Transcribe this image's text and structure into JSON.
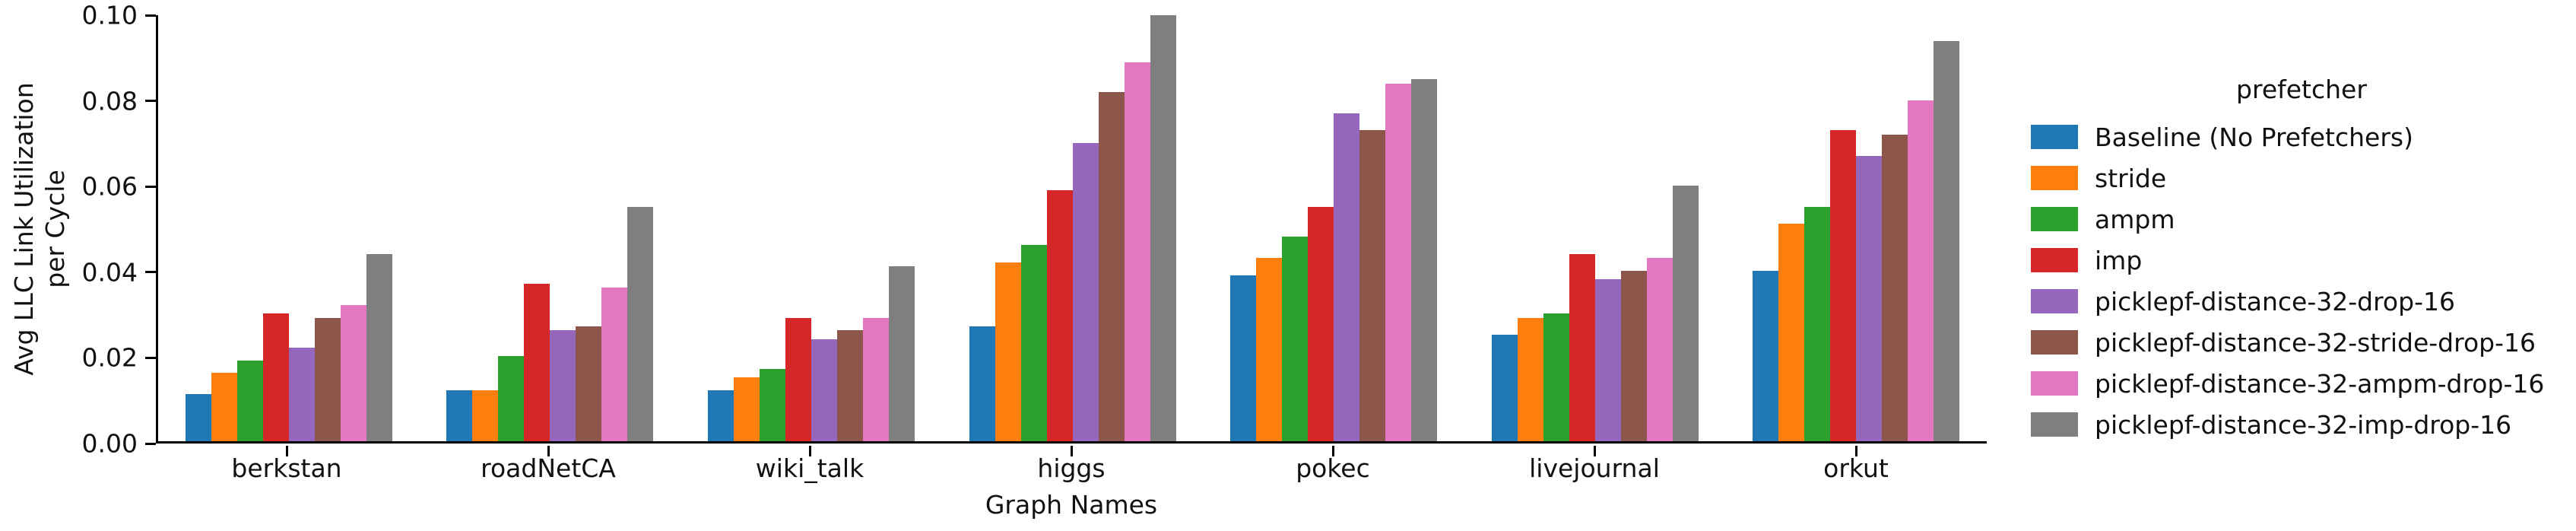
{
  "chart_data": {
    "type": "bar",
    "title": "",
    "xlabel": "Graph Names",
    "ylabel": "Avg LLC Link Utilization\nper Cycle",
    "legend_title": "prefetcher",
    "ylim": [
      0,
      0.1
    ],
    "yticks": [
      "0.00",
      "0.02",
      "0.04",
      "0.06",
      "0.08",
      "0.10"
    ],
    "grid": false,
    "legend_position": "right",
    "categories": [
      "berkstan",
      "roadNetCA",
      "wiki_talk",
      "higgs",
      "pokec",
      "livejournal",
      "orkut"
    ],
    "series": [
      {
        "name": "Baseline (No Prefetchers)",
        "color": "#1f77b4",
        "values": [
          0.011,
          0.012,
          0.012,
          0.027,
          0.039,
          0.025,
          0.04
        ]
      },
      {
        "name": "stride",
        "color": "#ff7f0e",
        "values": [
          0.016,
          0.012,
          0.015,
          0.042,
          0.043,
          0.029,
          0.051
        ]
      },
      {
        "name": "ampm",
        "color": "#2ca02c",
        "values": [
          0.019,
          0.02,
          0.017,
          0.046,
          0.048,
          0.03,
          0.055
        ]
      },
      {
        "name": "imp",
        "color": "#d62728",
        "values": [
          0.03,
          0.037,
          0.029,
          0.059,
          0.055,
          0.044,
          0.073
        ]
      },
      {
        "name": "picklepf-distance-32-drop-16",
        "color": "#9467bd",
        "values": [
          0.022,
          0.026,
          0.024,
          0.07,
          0.077,
          0.038,
          0.067
        ]
      },
      {
        "name": "picklepf-distance-32-stride-drop-16",
        "color": "#8c564b",
        "values": [
          0.029,
          0.027,
          0.026,
          0.082,
          0.073,
          0.04,
          0.072
        ]
      },
      {
        "name": "picklepf-distance-32-ampm-drop-16",
        "color": "#e377c2",
        "values": [
          0.032,
          0.036,
          0.029,
          0.089,
          0.084,
          0.043,
          0.08
        ]
      },
      {
        "name": "picklepf-distance-32-imp-drop-16",
        "color": "#7f7f7f",
        "values": [
          0.044,
          0.055,
          0.041,
          0.1,
          0.085,
          0.06,
          0.094
        ]
      }
    ]
  }
}
